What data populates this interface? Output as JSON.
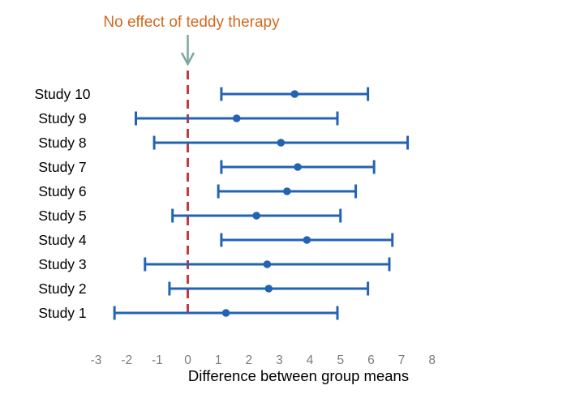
{
  "chart_data": {
    "type": "forest",
    "orientation": "horizontal",
    "annotation": {
      "text": "No effect of teddy therapy"
    },
    "xlabel": "Difference between group means",
    "x_axis": {
      "ticks": [
        -3,
        -2,
        -1,
        0,
        1,
        2,
        3,
        4,
        5,
        6,
        7,
        8
      ],
      "range": [
        -3.5,
        8.5
      ],
      "grid": false
    },
    "reference_line": {
      "x": 0,
      "style": "dashed"
    },
    "studies": [
      {
        "label": "Study 10",
        "mean": 3.5,
        "ci_low": 1.1,
        "ci_high": 5.9
      },
      {
        "label": "Study 9",
        "mean": 1.6,
        "ci_low": -1.7,
        "ci_high": 4.9
      },
      {
        "label": "Study 8",
        "mean": 3.05,
        "ci_low": -1.1,
        "ci_high": 7.2
      },
      {
        "label": "Study 7",
        "mean": 3.6,
        "ci_low": 1.1,
        "ci_high": 6.1
      },
      {
        "label": "Study 6",
        "mean": 3.25,
        "ci_low": 1.0,
        "ci_high": 5.5
      },
      {
        "label": "Study 5",
        "mean": 2.25,
        "ci_low": -0.5,
        "ci_high": 5.0
      },
      {
        "label": "Study 4",
        "mean": 3.9,
        "ci_low": 1.1,
        "ci_high": 6.7
      },
      {
        "label": "Study 3",
        "mean": 2.6,
        "ci_low": -1.4,
        "ci_high": 6.6
      },
      {
        "label": "Study 2",
        "mean": 2.65,
        "ci_low": -0.6,
        "ci_high": 5.9
      },
      {
        "label": "Study 1",
        "mean": 1.25,
        "ci_low": -2.4,
        "ci_high": 4.9
      }
    ]
  },
  "colors": {
    "ci_blue": "#2363b4",
    "reference_red": "#c33b42",
    "annotation_orange": "#d2691e",
    "arrow_teal": "#7ba7a1",
    "tick_gray": "#7c7c7c",
    "label_black": "#000000",
    "background": "#ffffff"
  }
}
